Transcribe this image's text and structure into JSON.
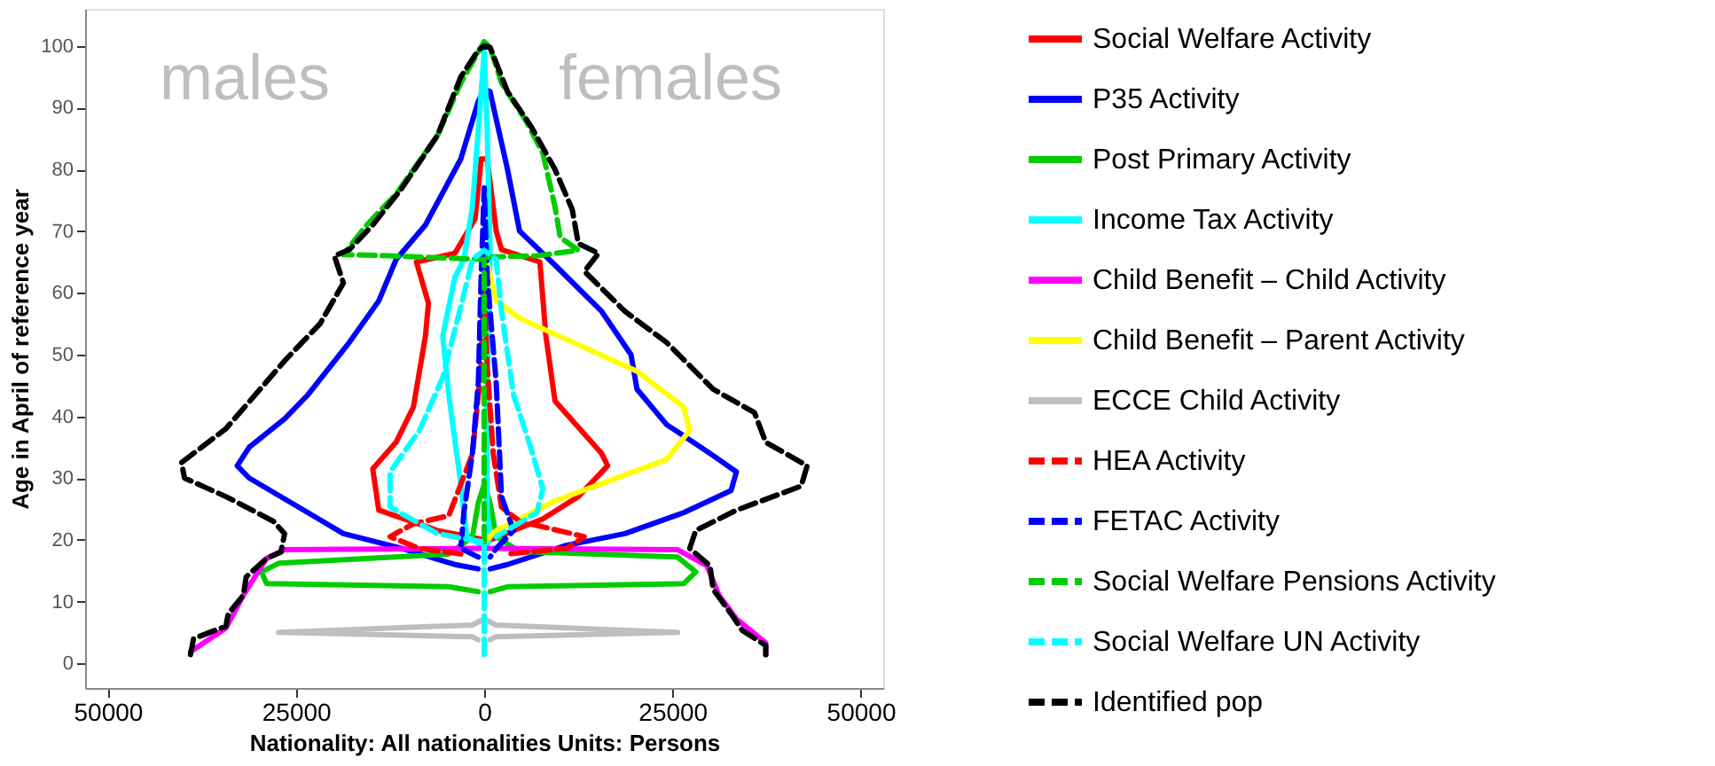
{
  "chart_data": {
    "type": "line",
    "xlabel": "Nationality: All nationalities   Units: Persons",
    "ylabel": "Age in April of reference year",
    "annotations": [
      "males",
      "females"
    ],
    "xlim": [
      -53000,
      53000
    ],
    "ylim": [
      -4,
      106
    ],
    "xticks": [
      {
        "value": -50000,
        "label": "50000"
      },
      {
        "value": -25000,
        "label": "25000"
      },
      0,
      25000,
      50000
    ],
    "yticks": [
      0,
      10,
      20,
      30,
      40,
      50,
      60,
      70,
      80,
      90,
      100
    ],
    "grid": false,
    "legend": "right",
    "series": [
      {
        "name": "Social Welfare Activity",
        "color": "#ff0000",
        "line_style": "solid",
        "x": [
          0,
          -6200,
          -14000,
          -14800,
          -11700,
          -9400,
          -7800,
          -7400,
          -9000,
          -3900,
          -1200,
          -400,
          400,
          1600,
          2300,
          7400,
          8200,
          9400,
          15600,
          16400,
          12500,
          7800,
          780
        ],
        "values": [
          20,
          21.5,
          24.8,
          31.5,
          35.8,
          41.5,
          53,
          58.3,
          65,
          66.4,
          72,
          81.7,
          81.7,
          70,
          67,
          65,
          53,
          42.5,
          34,
          32,
          27,
          23.4,
          20
        ]
      },
      {
        "name": "P35 Activity",
        "color": "#0000ff",
        "line_style": "solid",
        "x": [
          -800,
          -3900,
          -10900,
          -18700,
          -23400,
          -31200,
          -32800,
          -31200,
          -26500,
          -23400,
          -17900,
          -14000,
          -11700,
          -7800,
          -3100,
          -780,
          0,
          780,
          3100,
          4700,
          9400,
          15600,
          19500,
          20300,
          24200,
          30000,
          33500,
          32800,
          26500,
          18700,
          10900,
          3100,
          800
        ],
        "values": [
          15.3,
          16,
          18.6,
          21,
          24.4,
          30,
          32,
          35,
          39.6,
          43.5,
          52,
          58.7,
          65.4,
          71,
          81.7,
          91,
          93,
          92.6,
          80,
          70,
          64.5,
          57,
          50,
          44.4,
          38.7,
          34,
          31,
          28,
          24.4,
          21,
          19.1,
          16,
          15.3
        ]
      },
      {
        "name": "Post Primary Activity",
        "color": "#00cc00",
        "line_style": "solid",
        "x": [
          -780,
          -4700,
          -28900,
          -29600,
          -27300,
          -4700,
          -1560,
          -780,
          0,
          780,
          1600,
          4700,
          25700,
          28100,
          26500,
          3100,
          780
        ],
        "values": [
          11.6,
          12.4,
          12.9,
          14.8,
          16.2,
          17.7,
          20.5,
          26,
          29,
          26,
          20.5,
          18.1,
          17.2,
          14.8,
          12.9,
          12.4,
          11.6
        ]
      },
      {
        "name": "Income Tax Activity",
        "color": "#00ffff",
        "line_style": "solid",
        "x": [
          -400,
          -2300,
          -3100,
          -4700,
          -5500,
          -3900,
          -2700,
          -1560,
          -780,
          0,
          400,
          780,
          400,
          400,
          780,
          400
        ],
        "values": [
          19.2,
          20.5,
          29,
          43.5,
          53,
          62.5,
          65.4,
          74,
          86.4,
          99,
          86.4,
          67,
          43.5,
          24.4,
          20.5,
          19.2
        ]
      },
      {
        "name": "Child Benefit – Child Activity",
        "color": "#ff00ff",
        "line_style": "solid",
        "x": [
          -39000,
          -34300,
          -32000,
          -28900,
          -26500,
          0,
          25700,
          29600,
          31200,
          33500,
          37400,
          37400
        ],
        "values": [
          1.9,
          5.7,
          11,
          17,
          18.4,
          18.6,
          18.4,
          15.8,
          11,
          7.2,
          3.3,
          1.4
        ]
      },
      {
        "name": "Child Benefit – Parent Activity",
        "color": "#ffff00",
        "line_style": "solid",
        "x": [
          0,
          1600,
          9400,
          24200,
          27300,
          26500,
          20300,
          4700,
          1600,
          400
        ],
        "values": [
          19.6,
          21.5,
          26.3,
          33,
          37.7,
          41.5,
          47.3,
          55.9,
          58.7,
          64.5
        ]
      },
      {
        "name": "ECCE Child Activity",
        "color": "#bebebe",
        "line_style": "solid",
        "x": [
          -780,
          -1560,
          -27300,
          -1560,
          0,
          1560,
          25700,
          1560,
          780
        ],
        "values": [
          3.8,
          4.3,
          5,
          6.2,
          7.2,
          6.2,
          5,
          4.3,
          3.8
        ]
      },
      {
        "name": "HEA Activity",
        "color": "#ff0000",
        "line_style": "dashed",
        "x": [
          -3100,
          -8600,
          -12500,
          -9400,
          -4700,
          -1560,
          -400,
          0,
          400,
          1200,
          2300,
          4700,
          13300,
          10900,
          3100
        ],
        "values": [
          17.7,
          18.6,
          20.5,
          22.6,
          23.9,
          33.9,
          48,
          62.5,
          48,
          34,
          25.3,
          23,
          20.5,
          18.6,
          17.7
        ]
      },
      {
        "name": "FETAC Activity",
        "color": "#0000ff",
        "line_style": "dashed",
        "x": [
          -780,
          -3100,
          -2700,
          -1560,
          -780,
          -400,
          0,
          400,
          1600,
          2300,
          3900,
          1600,
          780
        ],
        "values": [
          17.2,
          18.6,
          24.4,
          34,
          45.4,
          62.6,
          77,
          62.6,
          45.4,
          27,
          21.5,
          18.6,
          17.2
        ]
      },
      {
        "name": "Social Welfare Pensions Activity",
        "color": "#00cc00",
        "line_style": "dashed",
        "x": [
          0,
          0,
          -12500,
          -18700,
          -15600,
          -11700,
          -6200,
          -3100,
          0,
          780,
          2300,
          5500,
          7800,
          9400,
          10100,
          12500,
          7000,
          150
        ],
        "values": [
          19.6,
          65.4,
          66,
          66.2,
          71,
          76,
          85.5,
          94,
          100.7,
          99.8,
          94,
          88,
          82.6,
          74,
          69,
          66.9,
          66,
          65.8
        ]
      },
      {
        "name": "Social Welfare UN Activity",
        "color": "#00ffff",
        "line_style": "dashed",
        "x": [
          0,
          0,
          -6200,
          -12500,
          -12500,
          -8600,
          -5500,
          -3100,
          -1560,
          0,
          1600,
          2300,
          3900,
          6200,
          7800,
          7000,
          1600
        ],
        "values": [
          1.4,
          19.6,
          21,
          25.3,
          31,
          37.7,
          46.3,
          57.8,
          65.4,
          66.9,
          65.4,
          57,
          43.5,
          34.9,
          28.2,
          24.4,
          20.5
        ]
      },
      {
        "name": "Identified pop",
        "color": "#000000",
        "line_style": "dashed",
        "x": [
          -39000,
          -38600,
          -34300,
          -34000,
          -32000,
          -31600,
          -28900,
          -27000,
          -26500,
          -28000,
          -34300,
          -39800,
          -40200,
          -34300,
          -30400,
          -26500,
          -21800,
          -18700,
          -19900,
          -17900,
          -14800,
          -10900,
          -6200,
          -3100,
          -780,
          0,
          780,
          3100,
          6200,
          9400,
          11700,
          12500,
          15200,
          13300,
          18700,
          24200,
          30400,
          35900,
          37400,
          42900,
          42100,
          33500,
          28100,
          27300,
          30000,
          30400,
          32800,
          34300,
          37400,
          37400
        ],
        "values": [
          1.4,
          4,
          6,
          8,
          11,
          14,
          17,
          18,
          21,
          23,
          27,
          30,
          32.5,
          38,
          43.5,
          49,
          55,
          61.6,
          66,
          67,
          71,
          77,
          85.5,
          95,
          99.3,
          100,
          99.8,
          92.6,
          87,
          80,
          73.5,
          68,
          66.4,
          63.5,
          57,
          52,
          44.4,
          40.6,
          35.8,
          32,
          28.7,
          24.8,
          21.5,
          18.6,
          15.8,
          12,
          8,
          5.3,
          2.9,
          1.4
        ]
      }
    ]
  }
}
